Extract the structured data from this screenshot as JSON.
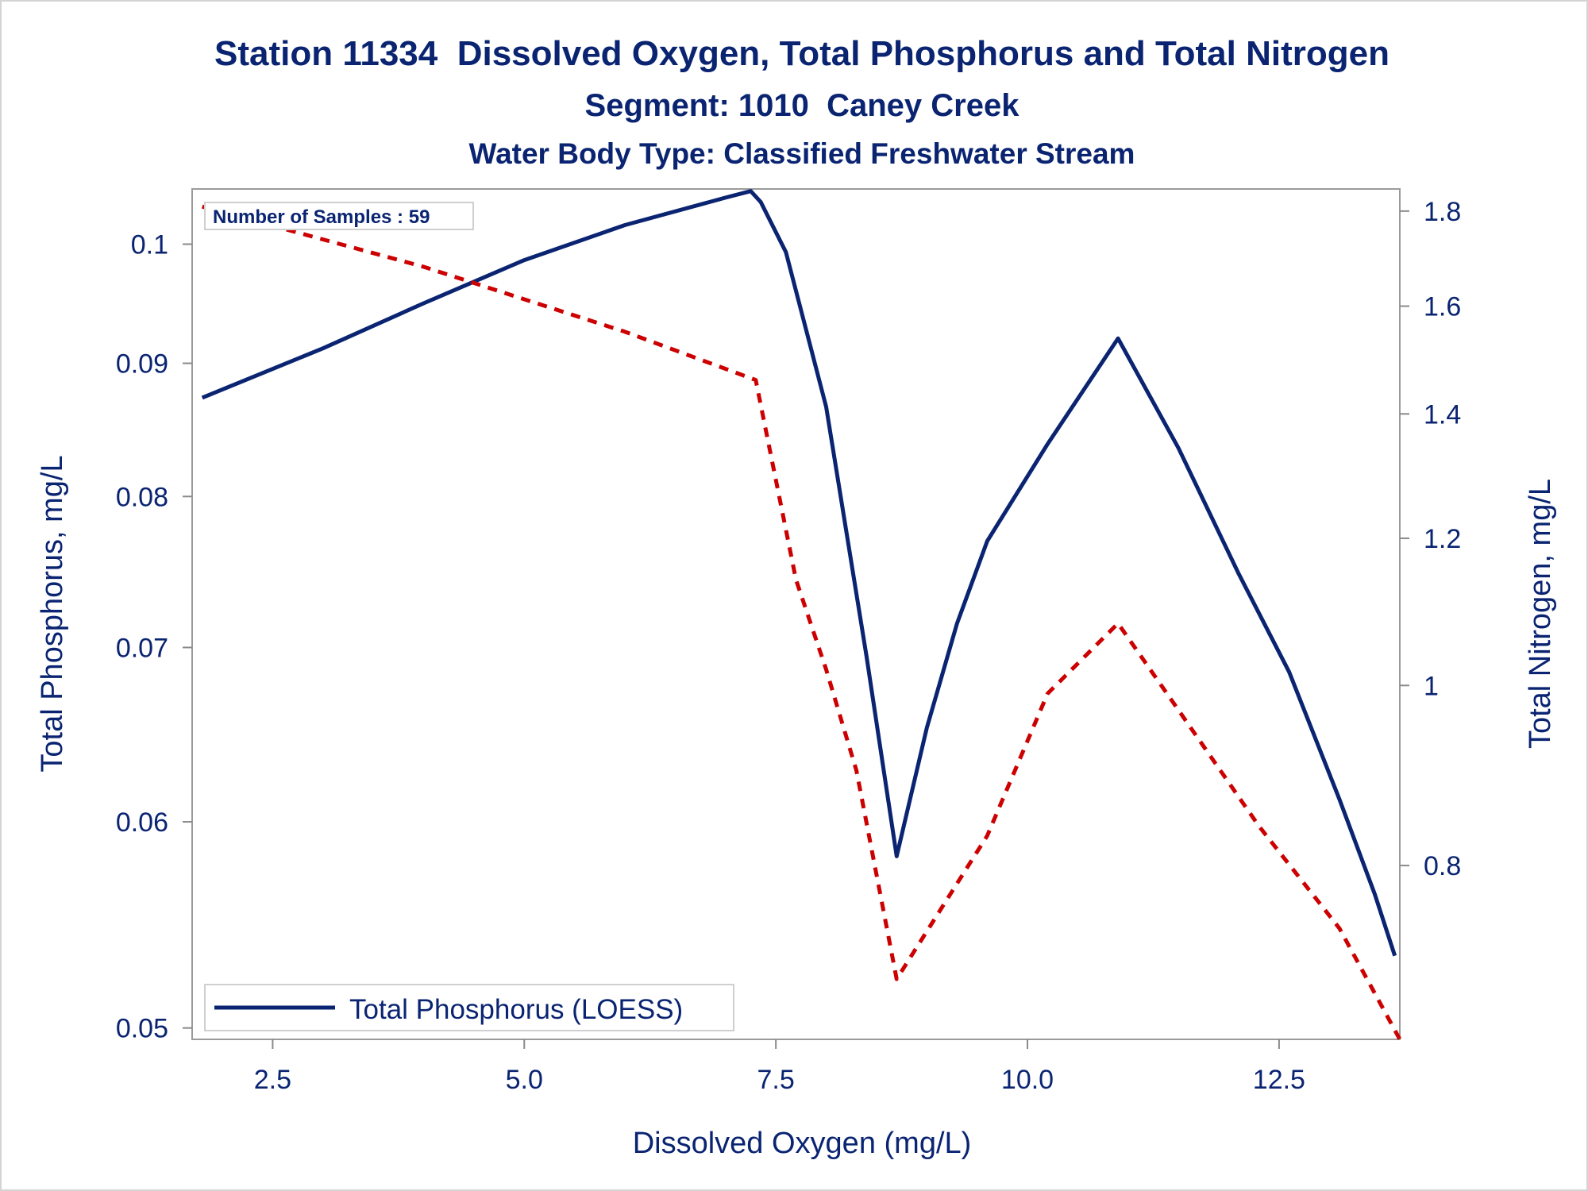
{
  "chart_data": {
    "type": "line",
    "title": "Station 11334  Dissolved Oxygen, Total Phosphorus and Total Nitrogen",
    "subtitle": "Segment: 1010  Caney Creek",
    "subtitle2": "Water Body Type: Classified Freshwater Stream",
    "xlabel": "Dissolved Oxygen (mg/L)",
    "ylabel": "Total Phosphorus, mg/L",
    "y2label": "Total Nitrogen, mg/L",
    "xlim": [
      1.7,
      13.7
    ],
    "ylim": [
      0.0495,
      0.105
    ],
    "y_scale": "log",
    "y2lim": [
      0.645,
      1.85
    ],
    "y2_scale": "log",
    "xticks": [
      "2.5",
      "5.0",
      "7.5",
      "10.0",
      "12.5"
    ],
    "yticks": [
      "0.05",
      "0.06",
      "0.07",
      "0.08",
      "0.09",
      "0.1"
    ],
    "y2ticks": [
      "0.8",
      "1",
      "1.2",
      "1.4",
      "1.6",
      "1.8"
    ],
    "annotation": "Number of Samples : 59",
    "legend": {
      "position": "bottom-left",
      "entries": [
        "Total Phosphorus (LOESS)"
      ]
    },
    "grid": false,
    "series": [
      {
        "name": "Total Phosphorus (LOESS)",
        "axis": "left",
        "color": "#0a2472",
        "style": "solid",
        "x": [
          1.8,
          3.0,
          4.0,
          5.0,
          6.0,
          7.0,
          7.25,
          7.35,
          7.6,
          8.0,
          8.4,
          8.7,
          9.0,
          9.3,
          9.6,
          10.2,
          10.9,
          11.5,
          12.1,
          12.6,
          13.1,
          13.45,
          13.65
        ],
        "y": [
          0.0873,
          0.0912,
          0.0949,
          0.0986,
          0.1017,
          0.1042,
          0.1048,
          0.1038,
          0.0993,
          0.0866,
          0.0695,
          0.0582,
          0.0652,
          0.0715,
          0.0769,
          0.0838,
          0.092,
          0.0835,
          0.0747,
          0.0685,
          0.0612,
          0.0563,
          0.0533
        ]
      },
      {
        "name": "",
        "axis": "right",
        "color": "#cc0000",
        "style": "dashed",
        "x": [
          1.8,
          4.0,
          6.0,
          7.3,
          7.7,
          8.0,
          8.3,
          8.7,
          9.6,
          10.2,
          10.9,
          11.5,
          12.3,
          13.1,
          13.7
        ],
        "y": [
          1.81,
          1.68,
          1.55,
          1.46,
          1.14,
          1.02,
          0.9,
          0.695,
          0.83,
          0.99,
          1.08,
          0.97,
          0.84,
          0.74,
          0.645
        ]
      }
    ]
  }
}
